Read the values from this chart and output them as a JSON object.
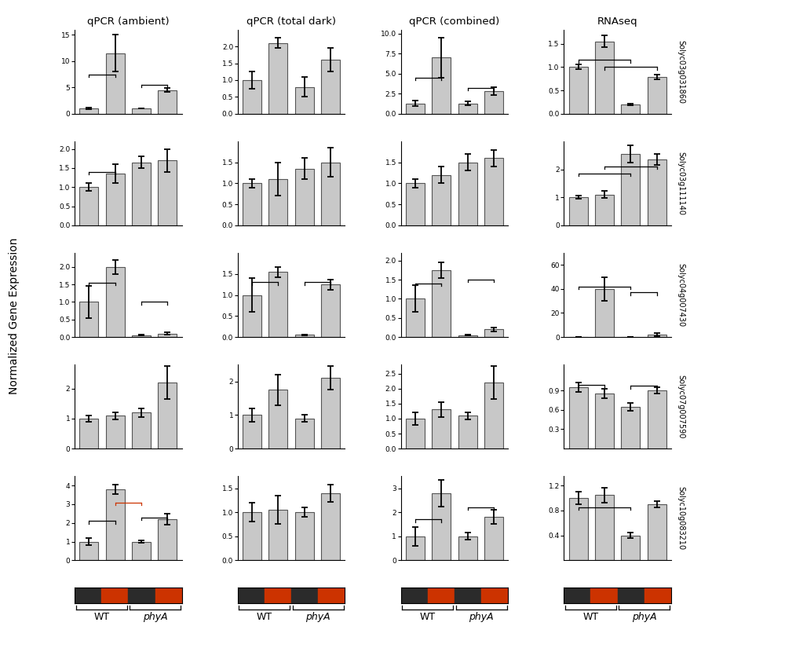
{
  "col_titles": [
    "qPCR (ambient)",
    "qPCR (total dark)",
    "qPCR (combined)",
    "RNAseq"
  ],
  "row_labels": [
    "Solyc03g031860",
    "Solyc03g111140",
    "Solyc04g007430",
    "Solyc07g007590",
    "Solyc10g083210"
  ],
  "bar_color": "#c8c8c8",
  "bar_edge_color": "#555555",
  "background_color": "#ffffff",
  "ylabel": "Normalized Gene Expression",
  "genes": {
    "Solyc03g031860": {
      "ambient": {
        "values": [
          1.0,
          11.5,
          1.0,
          4.5
        ],
        "errors": [
          0.15,
          3.5,
          0.05,
          0.4
        ],
        "ylim": [
          0,
          16
        ],
        "yticks": [
          0,
          5,
          10,
          15
        ]
      },
      "total_dark": {
        "values": [
          1.0,
          2.1,
          0.8,
          1.6
        ],
        "errors": [
          0.25,
          0.15,
          0.3,
          0.35
        ],
        "ylim": [
          0,
          2.5
        ],
        "yticks": [
          0.0,
          0.5,
          1.0,
          1.5,
          2.0
        ]
      },
      "combined": {
        "values": [
          1.3,
          7.0,
          1.3,
          2.8
        ],
        "errors": [
          0.3,
          2.5,
          0.2,
          0.5
        ],
        "ylim": [
          0,
          10.5
        ],
        "yticks": [
          0.0,
          2.5,
          5.0,
          7.5,
          10.0
        ]
      },
      "rnaseq": {
        "values": [
          1.0,
          1.55,
          0.2,
          0.78
        ],
        "errors": [
          0.05,
          0.12,
          0.02,
          0.05
        ],
        "ylim": [
          0,
          1.8
        ],
        "yticks": [
          0.0,
          0.5,
          1.0,
          1.5
        ]
      }
    },
    "Solyc03g111140": {
      "ambient": {
        "values": [
          1.0,
          1.35,
          1.65,
          1.7
        ],
        "errors": [
          0.1,
          0.25,
          0.15,
          0.3
        ],
        "ylim": [
          0,
          2.2
        ],
        "yticks": [
          0.0,
          0.5,
          1.0,
          1.5,
          2.0
        ]
      },
      "total_dark": {
        "values": [
          1.0,
          1.1,
          1.35,
          1.5
        ],
        "errors": [
          0.1,
          0.4,
          0.25,
          0.35
        ],
        "ylim": [
          0,
          2.0
        ],
        "yticks": [
          0.0,
          0.5,
          1.0,
          1.5
        ]
      },
      "combined": {
        "values": [
          1.0,
          1.2,
          1.5,
          1.6
        ],
        "errors": [
          0.1,
          0.2,
          0.2,
          0.2
        ],
        "ylim": [
          0,
          2.0
        ],
        "yticks": [
          0.0,
          0.5,
          1.0,
          1.5
        ]
      },
      "rnaseq": {
        "values": [
          1.0,
          1.1,
          2.55,
          2.35
        ],
        "errors": [
          0.05,
          0.12,
          0.3,
          0.2
        ],
        "ylim": [
          0,
          3.0
        ],
        "yticks": [
          0,
          1,
          2
        ]
      }
    },
    "Solyc04g007430": {
      "ambient": {
        "values": [
          1.0,
          2.0,
          0.05,
          0.1
        ],
        "errors": [
          0.45,
          0.2,
          0.01,
          0.03
        ],
        "ylim": [
          0,
          2.4
        ],
        "yticks": [
          0.0,
          0.5,
          1.0,
          1.5,
          2.0
        ]
      },
      "total_dark": {
        "values": [
          1.0,
          1.55,
          0.05,
          1.25
        ],
        "errors": [
          0.4,
          0.12,
          0.01,
          0.12
        ],
        "ylim": [
          0,
          2.0
        ],
        "yticks": [
          0.0,
          0.5,
          1.0,
          1.5
        ]
      },
      "combined": {
        "values": [
          1.0,
          1.75,
          0.05,
          0.2
        ],
        "errors": [
          0.35,
          0.2,
          0.01,
          0.05
        ],
        "ylim": [
          0,
          2.2
        ],
        "yticks": [
          0.0,
          0.5,
          1.0,
          1.5,
          2.0
        ]
      },
      "rnaseq": {
        "values": [
          0.05,
          40.0,
          0.05,
          2.0
        ],
        "errors": [
          0.01,
          10.0,
          0.01,
          1.0
        ],
        "ylim": [
          0,
          70
        ],
        "yticks": [
          0,
          20,
          40,
          60
        ]
      }
    },
    "Solyc07g007590": {
      "ambient": {
        "values": [
          1.0,
          1.1,
          1.2,
          2.2
        ],
        "errors": [
          0.1,
          0.12,
          0.15,
          0.55
        ],
        "ylim": [
          0,
          2.8
        ],
        "yticks": [
          0,
          1,
          2
        ]
      },
      "total_dark": {
        "values": [
          1.0,
          1.75,
          0.9,
          2.1
        ],
        "errors": [
          0.2,
          0.45,
          0.1,
          0.35
        ],
        "ylim": [
          0,
          2.5
        ],
        "yticks": [
          0,
          1,
          2
        ]
      },
      "combined": {
        "values": [
          1.0,
          1.3,
          1.1,
          2.2
        ],
        "errors": [
          0.2,
          0.25,
          0.12,
          0.55
        ],
        "ylim": [
          0,
          2.8
        ],
        "yticks": [
          0.0,
          0.5,
          1.0,
          1.5,
          2.0,
          2.5
        ]
      },
      "rnaseq": {
        "values": [
          0.95,
          0.85,
          0.65,
          0.9
        ],
        "errors": [
          0.07,
          0.07,
          0.06,
          0.05
        ],
        "ylim": [
          0,
          1.3
        ],
        "yticks": [
          0.3,
          0.6,
          0.9
        ]
      }
    },
    "Solyc10g083210": {
      "ambient": {
        "values": [
          1.0,
          3.8,
          1.0,
          2.2
        ],
        "errors": [
          0.18,
          0.25,
          0.08,
          0.3
        ],
        "ylim": [
          0,
          4.5
        ],
        "yticks": [
          0,
          1,
          2,
          3,
          4
        ]
      },
      "total_dark": {
        "values": [
          1.0,
          1.05,
          1.0,
          1.4
        ],
        "errors": [
          0.2,
          0.3,
          0.1,
          0.18
        ],
        "ylim": [
          0,
          1.75
        ],
        "yticks": [
          0.0,
          0.5,
          1.0,
          1.5
        ]
      },
      "combined": {
        "values": [
          1.0,
          2.8,
          1.0,
          1.8
        ],
        "errors": [
          0.4,
          0.55,
          0.15,
          0.3
        ],
        "ylim": [
          0,
          3.5
        ],
        "yticks": [
          0,
          1,
          2,
          3
        ]
      },
      "rnaseq": {
        "values": [
          1.0,
          1.05,
          0.4,
          0.9
        ],
        "errors": [
          0.1,
          0.12,
          0.04,
          0.05
        ],
        "ylim": [
          0,
          1.35
        ],
        "yticks": [
          0.4,
          0.8,
          1.2
        ]
      }
    }
  },
  "brackets": {
    "Solyc03g031860": {
      "ambient": [
        [
          0,
          1,
          7.5,
          "black"
        ],
        [
          2,
          3,
          5.5,
          "black"
        ]
      ],
      "total_dark": [],
      "combined": [
        [
          0,
          1,
          4.5,
          "black"
        ],
        [
          2,
          3,
          3.2,
          "black"
        ]
      ],
      "rnaseq": [
        [
          0,
          2,
          1.15,
          "black"
        ],
        [
          1,
          3,
          1.0,
          "black"
        ]
      ]
    },
    "Solyc03g111140": {
      "ambient": [
        [
          0,
          1,
          1.4,
          "black"
        ]
      ],
      "total_dark": [],
      "combined": [],
      "rnaseq": [
        [
          0,
          2,
          1.85,
          "black"
        ],
        [
          1,
          3,
          2.1,
          "black"
        ]
      ]
    },
    "Solyc04g007430": {
      "ambient": [
        [
          0,
          1,
          1.55,
          "black"
        ],
        [
          2,
          3,
          1.0,
          "black"
        ]
      ],
      "total_dark": [
        [
          0,
          1,
          1.3,
          "black"
        ],
        [
          2,
          3,
          1.3,
          "black"
        ]
      ],
      "combined": [
        [
          0,
          1,
          1.4,
          "black"
        ],
        [
          2,
          3,
          1.5,
          "black"
        ]
      ],
      "rnaseq": [
        [
          0,
          2,
          42.0,
          "black"
        ],
        [
          2,
          3,
          37.0,
          "black"
        ]
      ]
    },
    "Solyc07g007590": {
      "ambient": [],
      "total_dark": [],
      "combined": [],
      "rnaseq": [
        [
          0,
          1,
          0.99,
          "black"
        ],
        [
          2,
          3,
          0.97,
          "black"
        ]
      ]
    },
    "Solyc10g083210": {
      "ambient": [
        [
          0,
          1,
          2.1,
          "black"
        ],
        [
          2,
          3,
          2.3,
          "black"
        ],
        [
          1,
          2,
          3.1,
          "red"
        ]
      ],
      "total_dark": [],
      "combined": [
        [
          0,
          1,
          1.7,
          "black"
        ],
        [
          2,
          3,
          2.2,
          "black"
        ]
      ],
      "rnaseq": [
        [
          0,
          2,
          0.85,
          "black"
        ]
      ]
    }
  },
  "col_keys": [
    "ambient",
    "total_dark",
    "combined",
    "rnaseq"
  ],
  "row_keys": [
    "Solyc03g031860",
    "Solyc03g111140",
    "Solyc04g007430",
    "Solyc07g007590",
    "Solyc10g083210"
  ],
  "color_bar_dark": "#2b2b2b",
  "color_bar_red": "#cc3300",
  "xticklabel_wt": "WT",
  "xticklabel_phya": "phyA"
}
